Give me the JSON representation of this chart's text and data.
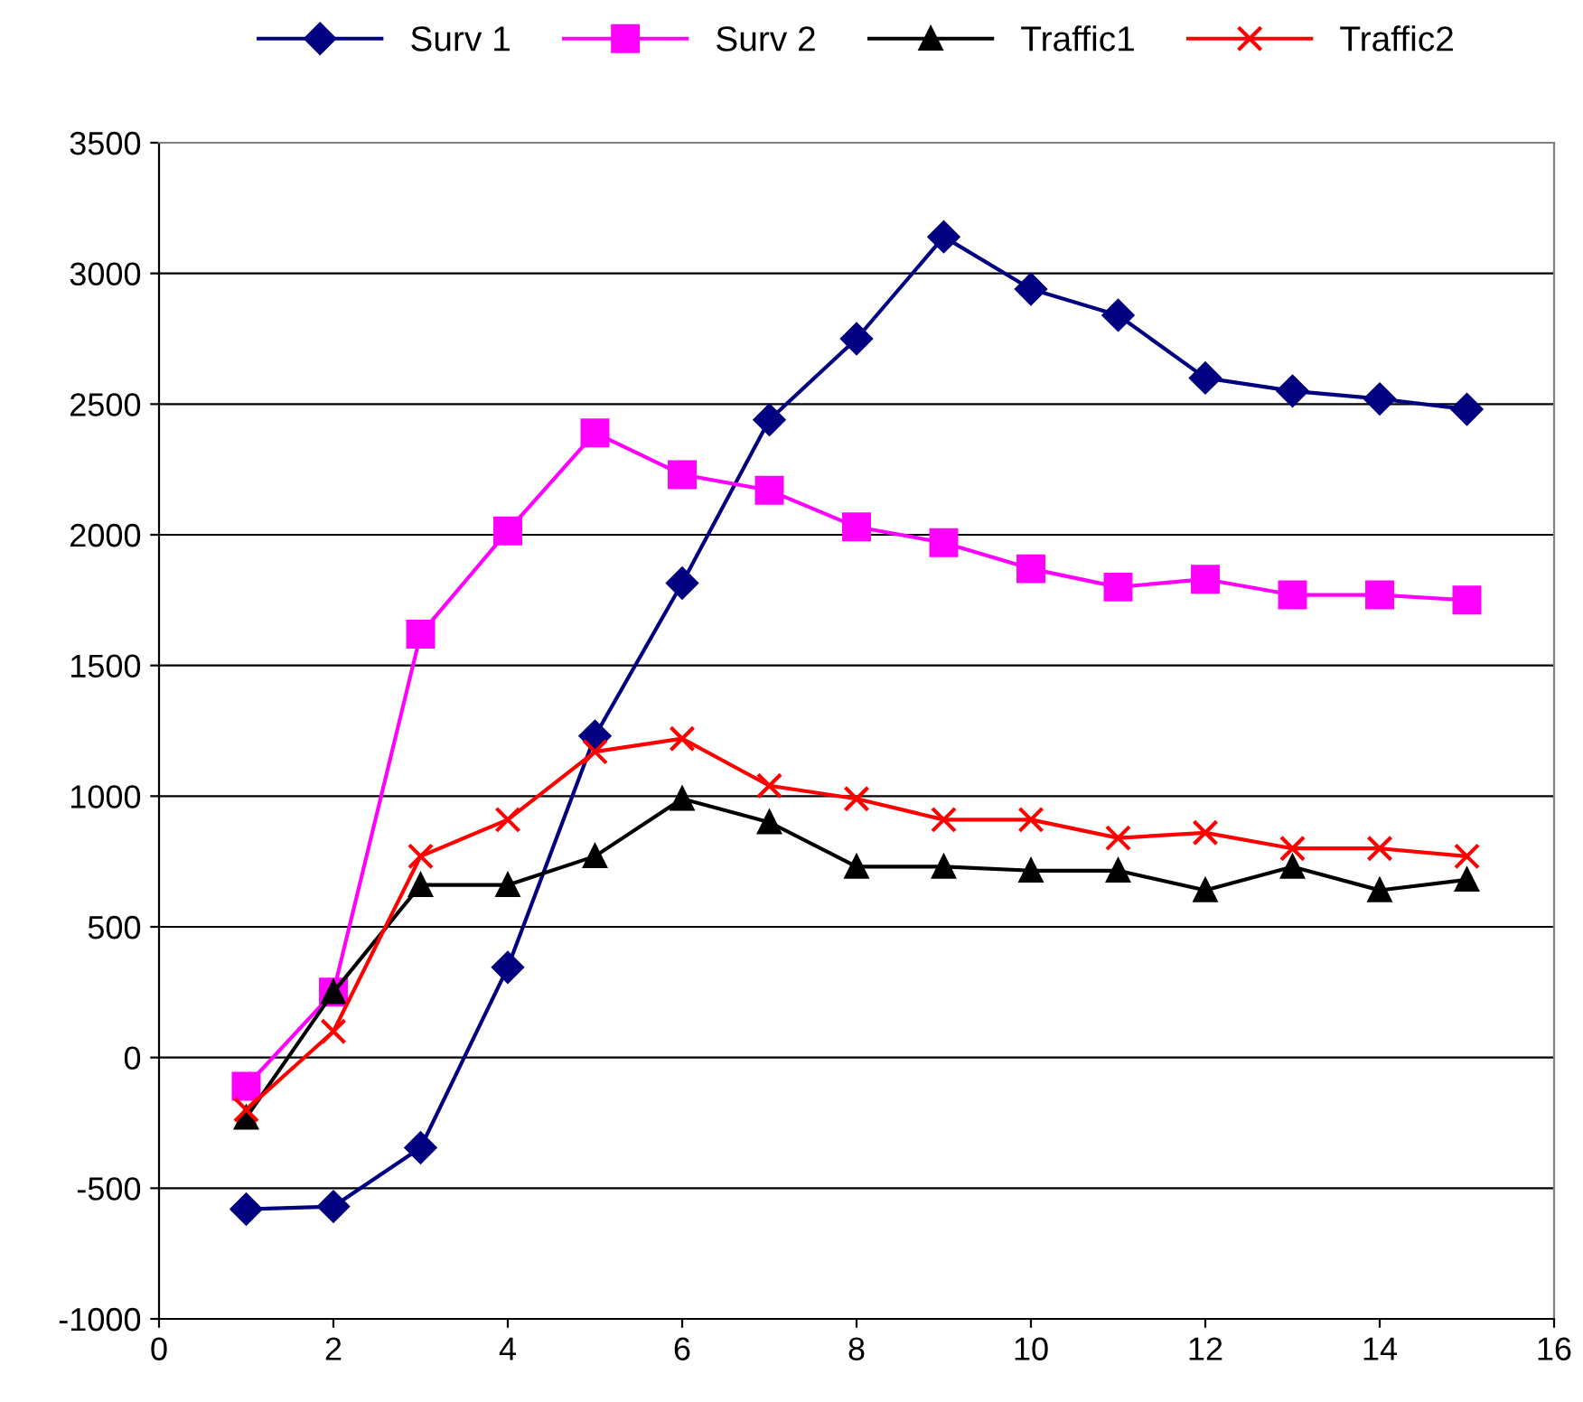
{
  "chart_data": {
    "type": "line",
    "x": [
      1,
      2,
      3,
      4,
      5,
      6,
      7,
      8,
      9,
      10,
      11,
      12,
      13,
      14,
      15
    ],
    "series": [
      {
        "name": "Surv 1",
        "color": "#000080",
        "marker": "diamond",
        "values": [
          -580,
          -570,
          -345,
          345,
          1230,
          1815,
          2440,
          2750,
          3140,
          2940,
          2840,
          2600,
          2550,
          2520,
          2480
        ]
      },
      {
        "name": "Surv 2",
        "color": "#ff00ff",
        "marker": "square",
        "values": [
          -110,
          250,
          1620,
          2015,
          2390,
          2230,
          2170,
          2030,
          1970,
          1870,
          1800,
          1830,
          1770,
          1770,
          1750
        ]
      },
      {
        "name": "Traffic1",
        "color": "#000000",
        "marker": "triangle",
        "values": [
          -230,
          250,
          660,
          660,
          770,
          990,
          900,
          730,
          730,
          715,
          715,
          640,
          730,
          640,
          680
        ]
      },
      {
        "name": "Traffic2",
        "color": "#ff0000",
        "marker": "cross",
        "values": [
          -200,
          100,
          770,
          910,
          1170,
          1220,
          1040,
          990,
          910,
          910,
          840,
          860,
          800,
          800,
          770
        ]
      }
    ],
    "xlim": [
      0,
      16
    ],
    "xticks": [
      0,
      2,
      4,
      6,
      8,
      10,
      12,
      14,
      16
    ],
    "ylim": [
      -1000,
      3500
    ],
    "yticks": [
      -1000,
      -500,
      0,
      500,
      1000,
      1500,
      2000,
      2500,
      3000,
      3500
    ],
    "grid": "y",
    "legend": "top",
    "line_style": "solid"
  }
}
